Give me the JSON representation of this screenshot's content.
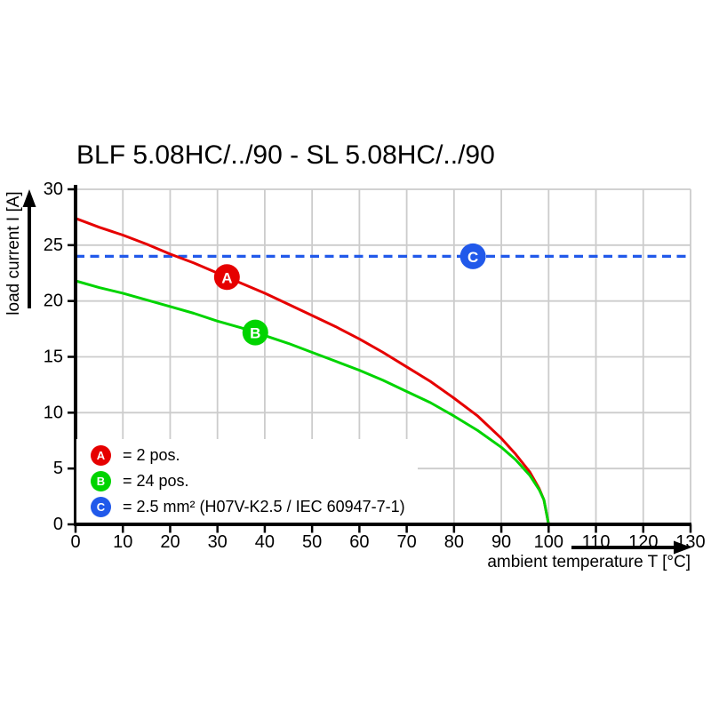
{
  "chart_data": {
    "type": "line",
    "title": "BLF 5.08HC/../90 - SL 5.08HC/../90",
    "xlabel": "ambient temperature T [°C]",
    "ylabel": "load current I [A]",
    "xlim": [
      0,
      130
    ],
    "ylim": [
      0,
      30
    ],
    "xticks": [
      0,
      10,
      20,
      30,
      40,
      50,
      60,
      70,
      80,
      90,
      100,
      110,
      120,
      130
    ],
    "yticks": [
      0,
      5,
      10,
      15,
      20,
      25,
      30
    ],
    "grid": true,
    "legend_position": "inside-bottom-left",
    "colors": {
      "background": "#ffffff",
      "grid": "#cccccc",
      "axis": "#000000",
      "series_a_red": "#e60000",
      "series_b_green": "#00d400",
      "series_c_blue": "#2159ea"
    },
    "series": [
      {
        "id": "A",
        "legend_label": "= 2 pos.",
        "color": "#e60000",
        "line_style": "solid",
        "marker_t": 32,
        "points": [
          [
            0,
            27.4
          ],
          [
            5,
            26.6
          ],
          [
            10,
            25.9
          ],
          [
            15,
            25.1
          ],
          [
            20,
            24.2
          ],
          [
            25,
            23.4
          ],
          [
            30,
            22.5
          ],
          [
            35,
            21.6
          ],
          [
            40,
            20.7
          ],
          [
            45,
            19.7
          ],
          [
            50,
            18.7
          ],
          [
            55,
            17.7
          ],
          [
            60,
            16.6
          ],
          [
            65,
            15.4
          ],
          [
            70,
            14.1
          ],
          [
            75,
            12.8
          ],
          [
            80,
            11.3
          ],
          [
            85,
            9.7
          ],
          [
            90,
            7.7
          ],
          [
            93,
            6.3
          ],
          [
            96,
            4.7
          ],
          [
            98,
            3.2
          ],
          [
            99,
            2.2
          ],
          [
            100,
            0
          ]
        ]
      },
      {
        "id": "B",
        "legend_label": "= 24 pos.",
        "color": "#00d400",
        "line_style": "solid",
        "marker_t": 38,
        "points": [
          [
            0,
            21.8
          ],
          [
            5,
            21.2
          ],
          [
            10,
            20.7
          ],
          [
            15,
            20.1
          ],
          [
            20,
            19.5
          ],
          [
            25,
            18.9
          ],
          [
            30,
            18.2
          ],
          [
            35,
            17.6
          ],
          [
            40,
            16.9
          ],
          [
            45,
            16.2
          ],
          [
            50,
            15.4
          ],
          [
            55,
            14.6
          ],
          [
            60,
            13.8
          ],
          [
            65,
            12.9
          ],
          [
            70,
            11.9
          ],
          [
            75,
            10.9
          ],
          [
            80,
            9.7
          ],
          [
            85,
            8.4
          ],
          [
            90,
            6.9
          ],
          [
            93,
            5.8
          ],
          [
            96,
            4.4
          ],
          [
            98,
            3.1
          ],
          [
            99,
            2.2
          ],
          [
            100,
            0
          ]
        ]
      },
      {
        "id": "C",
        "legend_label": "= 2.5 mm² (H07V-K2.5 / IEC 60947-7-1)",
        "color": "#2159ea",
        "line_style": "dashed",
        "marker_t": 84,
        "points": [
          [
            0,
            24
          ],
          [
            130,
            24
          ]
        ]
      }
    ]
  }
}
